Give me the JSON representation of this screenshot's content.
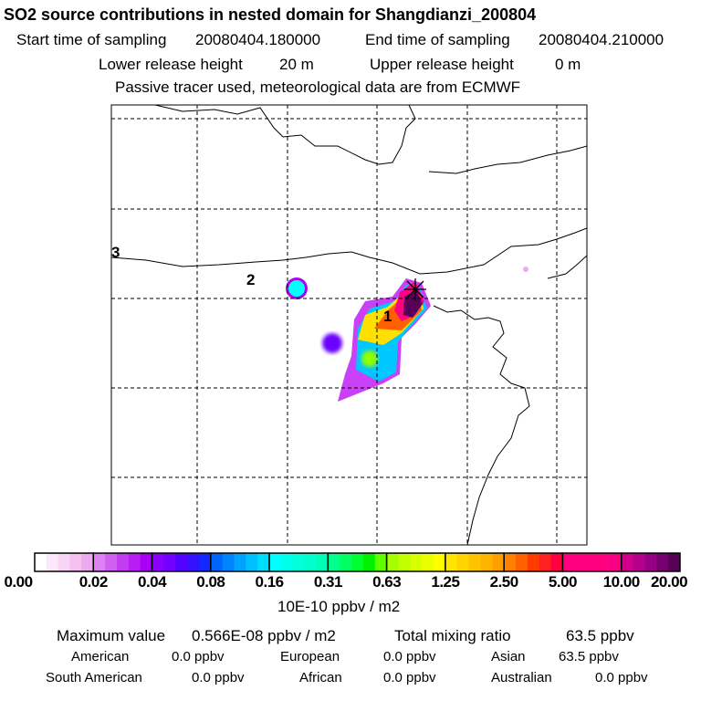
{
  "header": {
    "title": "SO2 source contributions in nested domain for Shangdianzi_200804",
    "start_label": "Start time of sampling",
    "start_value": "20080404.180000",
    "end_label": "End time of sampling",
    "end_value": "20080404.210000",
    "lower_label": "Lower release height",
    "lower_value": "20 m",
    "upper_label": "Upper release height",
    "upper_value": "0 m",
    "note": "Passive tracer used, meteorological data are from ECMWF"
  },
  "map": {
    "labels": [
      "1",
      "2",
      "3"
    ],
    "receptor_icon": "asterisk-marker-icon"
  },
  "colorbar": {
    "ticks": [
      "0.00",
      "0.02",
      "0.04",
      "0.08",
      "0.16",
      "0.31",
      "0.63",
      "1.25",
      "2.50",
      "5.00",
      "10.00",
      "20.00"
    ],
    "unit": "10E-10 ppbv / m2",
    "colors": [
      [
        "#ffffff",
        "#fde8fb",
        "#f9d4f6",
        "#f4c0f2",
        "#eeaaee"
      ],
      [
        "#e080f2",
        "#d060f2",
        "#c23cf2",
        "#b81cf4",
        "#a800f4"
      ],
      [
        "#8a00ff",
        "#7000ff",
        "#5200ff",
        "#3410ff",
        "#1428ff"
      ],
      [
        "#0064ff",
        "#0084ff",
        "#00a2ff",
        "#00c0ff",
        "#00dcff"
      ],
      [
        "#00ffff",
        "#00ffea",
        "#00ffda",
        "#00ffca",
        "#00ffb6"
      ],
      [
        "#00ff8c",
        "#00ff60",
        "#00ff30",
        "#00f000",
        "#60ff00"
      ],
      [
        "#a4ff00",
        "#c0ff00",
        "#d8ff00",
        "#ecff00",
        "#ffff00"
      ],
      [
        "#ffe400",
        "#ffd400",
        "#ffc400",
        "#ffb400",
        "#ffa000"
      ],
      [
        "#ff8000",
        "#ff6000",
        "#ff3c00",
        "#ff2020",
        "#ff0040"
      ],
      [
        "#ff0080",
        "#ff0080",
        "#ff0080",
        "#ff0080",
        "#f80084"
      ],
      [
        "#d0008c",
        "#b4008c",
        "#960084",
        "#760070",
        "#560058"
      ]
    ]
  },
  "footer": {
    "max_label": "Maximum value",
    "max_value": "0.566E-08 ppbv / m2",
    "total_label": "Total mixing ratio",
    "total_value": "63.5 ppbv",
    "regions": [
      {
        "name": "American",
        "value": "0.0 ppbv"
      },
      {
        "name": "European",
        "value": "0.0 ppbv"
      },
      {
        "name": "Asian",
        "value": "63.5 ppbv"
      },
      {
        "name": "South American",
        "value": "0.0 ppbv"
      },
      {
        "name": "African",
        "value": "0.0 ppbv"
      },
      {
        "name": "Australian",
        "value": "0.0 ppbv"
      }
    ]
  }
}
